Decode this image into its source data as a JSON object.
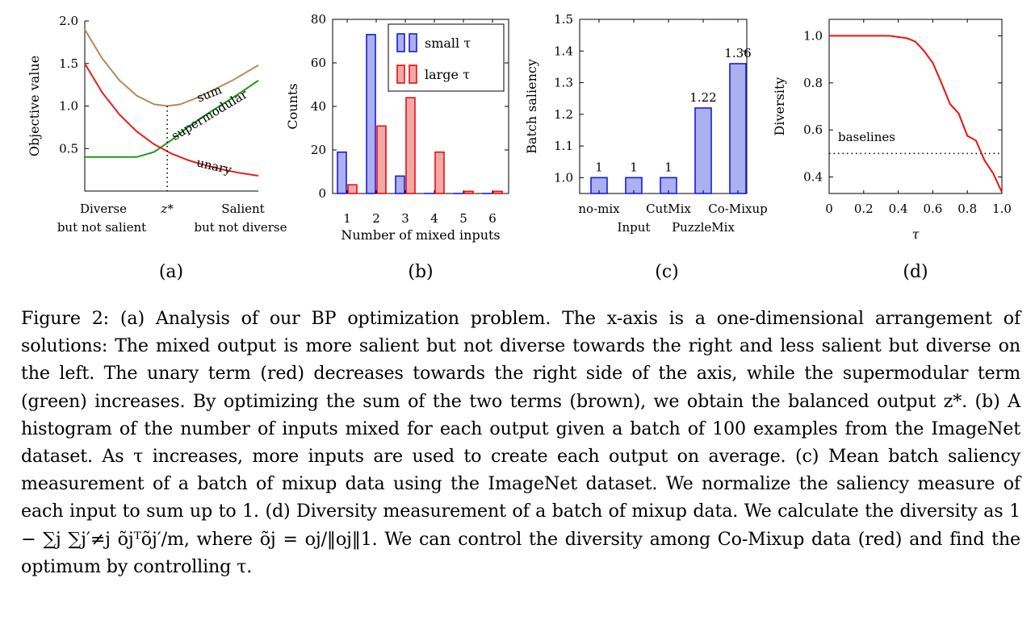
{
  "figure_number": "Figure 2:",
  "caption": "(a) Analysis of our BP optimization problem. The x-axis is a one-dimensional arrangement of solutions: The mixed output is more salient but not diverse towards the right and less salient but diverse on the left. The unary term (red) decreases towards the right side of the axis, while the supermodular term (green) increases. By optimizing the sum of the two terms (brown), we obtain the balanced output z*. (b) A histogram of the number of inputs mixed for each output given a batch of 100 examples from the ImageNet dataset. As τ increases, more inputs are used to create each output on average. (c) Mean batch saliency measurement of a batch of mixup data using the ImageNet dataset. We normalize the saliency measure of each input to sum up to 1. (d) Diversity measurement of a batch of mixup data. We calculate the diversity as 1 − ∑j ∑j′≠j õjᵀõj′/m, where õj = oj/‖oj‖1. We can control the diversity among Co-Mixup data (red) and find the optimum by controlling τ.",
  "colors": {
    "sum": "#b88a5a",
    "supermodular": "#1a9a1a",
    "unary": "#e8201a",
    "small_fill": "#aab0f0",
    "small_edge": "#1b1be0",
    "large_fill": "#f4a8a8",
    "large_edge": "#e81010",
    "diversity": "#ee1111"
  },
  "chart_data": [
    {
      "panel_label": "(a)",
      "type": "line",
      "ylabel": "Objective value",
      "ylim": [
        0,
        2.0
      ],
      "yticks": [
        "0.5",
        "1.0",
        "1.5",
        "2.0"
      ],
      "x_tick_labels": [
        "Diverse",
        "but not salient",
        "z*",
        "Salient",
        "but not diverse"
      ],
      "series": [
        {
          "name": "sum",
          "x": [
            0,
            0.1,
            0.2,
            0.3,
            0.4,
            0.475,
            0.55,
            0.65,
            0.75,
            0.85,
            1.0
          ],
          "y": [
            1.9,
            1.56,
            1.3,
            1.12,
            1.02,
            1.0,
            1.02,
            1.1,
            1.2,
            1.3,
            1.48
          ]
        },
        {
          "name": "supermodular",
          "x": [
            0,
            0.3,
            0.4,
            0.5,
            0.6,
            0.7,
            0.8,
            0.9,
            1.0
          ],
          "y": [
            0.4,
            0.4,
            0.46,
            0.6,
            0.76,
            0.9,
            1.03,
            1.16,
            1.3
          ]
        },
        {
          "name": "unary",
          "x": [
            0,
            0.1,
            0.2,
            0.3,
            0.4,
            0.5,
            0.6,
            0.7,
            0.8,
            0.9,
            1.0
          ],
          "y": [
            1.5,
            1.16,
            0.9,
            0.7,
            0.55,
            0.44,
            0.36,
            0.3,
            0.25,
            0.21,
            0.18
          ]
        }
      ],
      "annotations": [
        "sum",
        "supermodular",
        "unary"
      ],
      "zstar_x": 0.475
    },
    {
      "panel_label": "(b)",
      "type": "bar",
      "xlabel": "Number of mixed inputs",
      "ylabel": "Counts",
      "ylim": [
        0,
        80
      ],
      "yticks": [
        "0",
        "20",
        "40",
        "60",
        "80"
      ],
      "categories": [
        "1",
        "2",
        "3",
        "4",
        "5",
        "6"
      ],
      "series": [
        {
          "name": "small τ",
          "values": [
            19,
            73,
            8,
            0,
            0,
            0
          ]
        },
        {
          "name": "large τ",
          "values": [
            4,
            31,
            44,
            19,
            1,
            1
          ]
        }
      ],
      "legend": "top-right"
    },
    {
      "panel_label": "(c)",
      "type": "bar",
      "ylabel": "Batch saliency",
      "ylim": [
        0.95,
        1.5
      ],
      "yticks": [
        "1.0",
        "1.1",
        "1.2",
        "1.3",
        "1.4",
        "1.5"
      ],
      "categories": [
        "no-mix",
        "Input",
        "CutMix",
        "PuzzleMix",
        "Co-Mixup"
      ],
      "values": [
        1,
        1,
        1,
        1.22,
        1.36
      ],
      "data_labels": [
        "1",
        "1",
        "1",
        "1.22",
        "1.36"
      ]
    },
    {
      "panel_label": "(d)",
      "type": "line",
      "xlabel": "τ",
      "ylabel": "Diversity",
      "xlim": [
        0,
        1.0
      ],
      "ylim": [
        0.33,
        1.07
      ],
      "xticks": [
        "0",
        "0.2",
        "0.4",
        "0.6",
        "0.8",
        "1.0"
      ],
      "yticks": [
        "0.4",
        "0.6",
        "0.8",
        "1.0"
      ],
      "series": [
        {
          "name": "Co-Mixup",
          "x": [
            0,
            0.1,
            0.2,
            0.3,
            0.35,
            0.4,
            0.45,
            0.5,
            0.55,
            0.6,
            0.65,
            0.7,
            0.75,
            0.8,
            0.85,
            0.9,
            0.95,
            1.0
          ],
          "y": [
            1.0,
            1.0,
            1.0,
            1.0,
            1.0,
            0.995,
            0.99,
            0.975,
            0.935,
            0.885,
            0.8,
            0.71,
            0.67,
            0.575,
            0.555,
            0.47,
            0.415,
            0.335
          ]
        }
      ],
      "baseline": {
        "name": "baselines",
        "y": 0.5
      }
    }
  ]
}
